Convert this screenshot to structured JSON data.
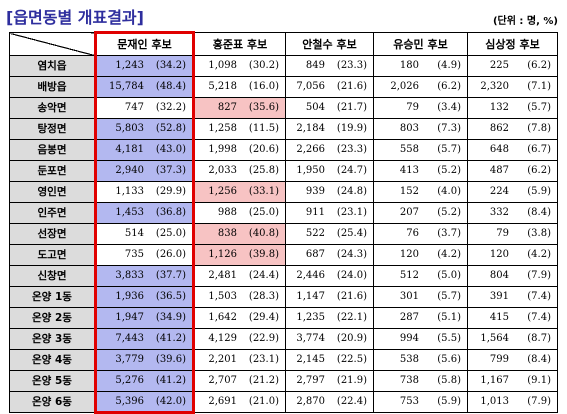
{
  "title": "[읍면동별 개표결과]",
  "unit_note": "(단위 : 명, %)",
  "columns": [
    "문재인 후보",
    "홍준표 후보",
    "안철수 후보",
    "유승민 후보",
    "심상정 후보"
  ],
  "rows": [
    {
      "region": "염치읍",
      "vals": [
        [
          "1,243",
          "(34.2)"
        ],
        [
          "1,098",
          "(30.2)"
        ],
        [
          "849",
          "(23.3)"
        ],
        [
          "180",
          "(4.9)"
        ],
        [
          "225",
          "(6.2)"
        ]
      ],
      "hl": "blue"
    },
    {
      "region": "배방읍",
      "vals": [
        [
          "15,784",
          "(48.4)"
        ],
        [
          "5,218",
          "(16.0)"
        ],
        [
          "7,056",
          "(21.6)"
        ],
        [
          "2,026",
          "(6.2)"
        ],
        [
          "2,320",
          "(7.1)"
        ]
      ],
      "hl": "blue"
    },
    {
      "region": "송악면",
      "vals": [
        [
          "747",
          "(32.2)"
        ],
        [
          "827",
          "(35.6)"
        ],
        [
          "504",
          "(21.7)"
        ],
        [
          "79",
          "(3.4)"
        ],
        [
          "132",
          "(5.7)"
        ]
      ],
      "hl": "pink"
    },
    {
      "region": "탕정면",
      "vals": [
        [
          "5,803",
          "(52.8)"
        ],
        [
          "1,258",
          "(11.5)"
        ],
        [
          "2,184",
          "(19.9)"
        ],
        [
          "803",
          "(7.3)"
        ],
        [
          "862",
          "(7.8)"
        ]
      ],
      "hl": "blue"
    },
    {
      "region": "음봉면",
      "vals": [
        [
          "4,181",
          "(43.0)"
        ],
        [
          "1,998",
          "(20.6)"
        ],
        [
          "2,266",
          "(23.3)"
        ],
        [
          "558",
          "(5.7)"
        ],
        [
          "648",
          "(6.7)"
        ]
      ],
      "hl": "blue"
    },
    {
      "region": "둔포면",
      "vals": [
        [
          "2,940",
          "(37.3)"
        ],
        [
          "2,033",
          "(25.8)"
        ],
        [
          "1,950",
          "(24.7)"
        ],
        [
          "413",
          "(5.2)"
        ],
        [
          "487",
          "(6.2)"
        ]
      ],
      "hl": "blue"
    },
    {
      "region": "영인면",
      "vals": [
        [
          "1,133",
          "(29.9)"
        ],
        [
          "1,256",
          "(33.1)"
        ],
        [
          "939",
          "(24.8)"
        ],
        [
          "152",
          "(4.0)"
        ],
        [
          "224",
          "(5.9)"
        ]
      ],
      "hl": "pink"
    },
    {
      "region": "인주면",
      "vals": [
        [
          "1,453",
          "(36.8)"
        ],
        [
          "988",
          "(25.0)"
        ],
        [
          "911",
          "(23.1)"
        ],
        [
          "207",
          "(5.2)"
        ],
        [
          "332",
          "(8.4)"
        ]
      ],
      "hl": "blue"
    },
    {
      "region": "선장면",
      "vals": [
        [
          "514",
          "(25.0)"
        ],
        [
          "838",
          "(40.8)"
        ],
        [
          "522",
          "(25.4)"
        ],
        [
          "76",
          "(3.7)"
        ],
        [
          "79",
          "(3.8)"
        ]
      ],
      "hl": "pink"
    },
    {
      "region": "도고면",
      "vals": [
        [
          "735",
          "(26.0)"
        ],
        [
          "1,126",
          "(39.8)"
        ],
        [
          "687",
          "(24.3)"
        ],
        [
          "120",
          "(4.2)"
        ],
        [
          "120",
          "(4.2)"
        ]
      ],
      "hl": "pink"
    },
    {
      "region": "신창면",
      "vals": [
        [
          "3,833",
          "(37.7)"
        ],
        [
          "2,481",
          "(24.4)"
        ],
        [
          "2,446",
          "(24.0)"
        ],
        [
          "512",
          "(5.0)"
        ],
        [
          "804",
          "(7.9)"
        ]
      ],
      "hl": "blue"
    },
    {
      "region": "온양 1동",
      "vals": [
        [
          "1,936",
          "(36.5)"
        ],
        [
          "1,503",
          "(28.3)"
        ],
        [
          "1,147",
          "(21.6)"
        ],
        [
          "301",
          "(5.7)"
        ],
        [
          "391",
          "(7.4)"
        ]
      ],
      "hl": "blue"
    },
    {
      "region": "온양 2동",
      "vals": [
        [
          "1,947",
          "(34.9)"
        ],
        [
          "1,642",
          "(29.4)"
        ],
        [
          "1,235",
          "(22.1)"
        ],
        [
          "287",
          "(5.1)"
        ],
        [
          "415",
          "(7.4)"
        ]
      ],
      "hl": "blue"
    },
    {
      "region": "온양 3동",
      "vals": [
        [
          "7,443",
          "(41.2)"
        ],
        [
          "4,129",
          "(22.9)"
        ],
        [
          "3,774",
          "(20.9)"
        ],
        [
          "994",
          "(5.5)"
        ],
        [
          "1,564",
          "(8.7)"
        ]
      ],
      "hl": "blue"
    },
    {
      "region": "온양 4동",
      "vals": [
        [
          "3,779",
          "(39.6)"
        ],
        [
          "2,201",
          "(23.1)"
        ],
        [
          "2,145",
          "(22.5)"
        ],
        [
          "538",
          "(5.6)"
        ],
        [
          "799",
          "(8.4)"
        ]
      ],
      "hl": "blue"
    },
    {
      "region": "온양 5동",
      "vals": [
        [
          "5,276",
          "(41.2)"
        ],
        [
          "2,707",
          "(21.2)"
        ],
        [
          "2,797",
          "(21.9)"
        ],
        [
          "738",
          "(5.8)"
        ],
        [
          "1,167",
          "(9.1)"
        ]
      ],
      "hl": "blue"
    },
    {
      "region": "온양 6동",
      "vals": [
        [
          "5,396",
          "(42.0)"
        ],
        [
          "2,691",
          "(21.0)"
        ],
        [
          "2,870",
          "(22.4)"
        ],
        [
          "753",
          "(5.9)"
        ],
        [
          "1,013",
          "(7.9)"
        ]
      ],
      "hl": "blue"
    }
  ],
  "colors": {
    "title": "#2e2e9e",
    "region_bg": "#dcdcdc",
    "highlight_blue": "#b3b8f0",
    "highlight_pink": "#f7c3c3",
    "moon_column_border": "#e00000"
  }
}
